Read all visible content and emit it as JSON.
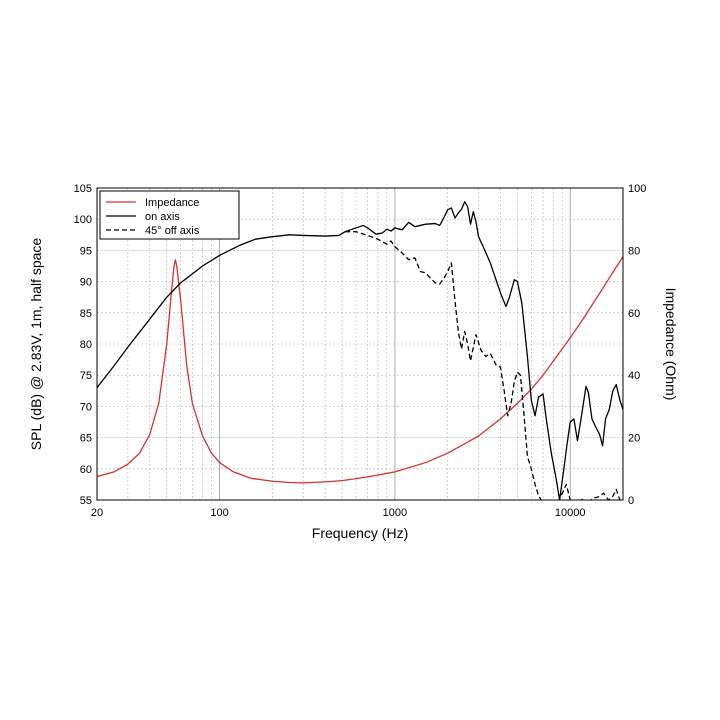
{
  "chart_data": {
    "type": "line",
    "title": "",
    "xlabel": "Frequency (Hz)",
    "ylabel_left": "SPL (dB) @ 2.83V, 1m, half space",
    "ylabel_right": "Impedance (Ohm)",
    "xscale": "log",
    "xlim": [
      20,
      20000
    ],
    "ylim_left": [
      55,
      105
    ],
    "ylim_right": [
      0,
      100
    ],
    "x_tick_labels": [
      "20",
      "100",
      "1000",
      "10000"
    ],
    "x_ticks": [
      20,
      100,
      1000,
      10000
    ],
    "y_left_ticks": [
      55,
      60,
      65,
      70,
      75,
      80,
      85,
      90,
      95,
      100,
      105
    ],
    "y_right_ticks": [
      0,
      20,
      40,
      60,
      80,
      100
    ],
    "grid": true,
    "legend_position": "top-left",
    "series": [
      {
        "name": "Impedance",
        "axis": "right",
        "color": "#d6322b",
        "style": "solid",
        "points": [
          [
            20,
            7.5
          ],
          [
            25,
            9
          ],
          [
            30,
            11.5
          ],
          [
            35,
            15
          ],
          [
            40,
            21
          ],
          [
            45,
            31
          ],
          [
            50,
            50
          ],
          [
            53,
            66
          ],
          [
            55,
            75
          ],
          [
            56,
            77
          ],
          [
            57,
            75
          ],
          [
            60,
            64
          ],
          [
            65,
            43
          ],
          [
            70,
            31
          ],
          [
            80,
            20.5
          ],
          [
            90,
            15
          ],
          [
            100,
            12
          ],
          [
            120,
            9
          ],
          [
            150,
            7
          ],
          [
            200,
            6
          ],
          [
            250,
            5.6
          ],
          [
            300,
            5.5
          ],
          [
            400,
            5.8
          ],
          [
            500,
            6.2
          ],
          [
            700,
            7.4
          ],
          [
            1000,
            9
          ],
          [
            1500,
            12
          ],
          [
            2000,
            15
          ],
          [
            3000,
            20.5
          ],
          [
            4000,
            26
          ],
          [
            5000,
            31
          ],
          [
            6000,
            35.5
          ],
          [
            7000,
            40
          ],
          [
            8000,
            44.5
          ],
          [
            10000,
            52
          ],
          [
            12000,
            58.5
          ],
          [
            15000,
            67
          ],
          [
            18000,
            74
          ],
          [
            20000,
            78
          ]
        ]
      },
      {
        "name": "on axis",
        "axis": "left",
        "color": "#000000",
        "style": "solid",
        "points": [
          [
            20,
            73
          ],
          [
            25,
            76.5
          ],
          [
            30,
            79.5
          ],
          [
            40,
            84
          ],
          [
            50,
            87.5
          ],
          [
            60,
            89.8
          ],
          [
            80,
            92.5
          ],
          [
            100,
            94.2
          ],
          [
            130,
            95.8
          ],
          [
            160,
            96.8
          ],
          [
            200,
            97.2
          ],
          [
            250,
            97.5
          ],
          [
            300,
            97.4
          ],
          [
            400,
            97.3
          ],
          [
            480,
            97.4
          ],
          [
            520,
            98
          ],
          [
            600,
            98.6
          ],
          [
            660,
            99
          ],
          [
            700,
            98.6
          ],
          [
            780,
            97.6
          ],
          [
            850,
            97.8
          ],
          [
            900,
            98.4
          ],
          [
            950,
            98.1
          ],
          [
            1000,
            98.6
          ],
          [
            1100,
            98.3
          ],
          [
            1200,
            99.5
          ],
          [
            1300,
            98.8
          ],
          [
            1500,
            99.2
          ],
          [
            1700,
            99.3
          ],
          [
            1800,
            99
          ],
          [
            1900,
            100.2
          ],
          [
            2000,
            101.5
          ],
          [
            2100,
            101.8
          ],
          [
            2200,
            100.2
          ],
          [
            2300,
            101
          ],
          [
            2400,
            101.6
          ],
          [
            2500,
            102.8
          ],
          [
            2600,
            102
          ],
          [
            2700,
            99.2
          ],
          [
            2800,
            101.2
          ],
          [
            2900,
            99.6
          ],
          [
            3000,
            97.2
          ],
          [
            3200,
            95.5
          ],
          [
            3500,
            93
          ],
          [
            4000,
            88.2
          ],
          [
            4300,
            86
          ],
          [
            4500,
            87.5
          ],
          [
            4800,
            90.3
          ],
          [
            5000,
            90
          ],
          [
            5300,
            86.5
          ],
          [
            5700,
            78
          ],
          [
            6000,
            71
          ],
          [
            6300,
            68.5
          ],
          [
            6600,
            71.5
          ],
          [
            7000,
            72
          ],
          [
            7300,
            68
          ],
          [
            7800,
            62.5
          ],
          [
            8300,
            58.5
          ],
          [
            8700,
            55
          ],
          [
            9200,
            60
          ],
          [
            9600,
            64
          ],
          [
            10000,
            67.5
          ],
          [
            10500,
            68
          ],
          [
            11000,
            64.5
          ],
          [
            11600,
            68.5
          ],
          [
            12300,
            73.2
          ],
          [
            12700,
            72.2
          ],
          [
            13300,
            68
          ],
          [
            14100,
            66.5
          ],
          [
            14700,
            65.5
          ],
          [
            15300,
            63.7
          ],
          [
            15900,
            68
          ],
          [
            16700,
            69.5
          ],
          [
            17500,
            72.5
          ],
          [
            18300,
            73.5
          ],
          [
            19200,
            71
          ],
          [
            20000,
            69.5
          ]
        ]
      },
      {
        "name": "45° off axis",
        "axis": "left",
        "color": "#000000",
        "style": "dashed",
        "points": [
          [
            520,
            98
          ],
          [
            600,
            98
          ],
          [
            700,
            97.4
          ],
          [
            800,
            96.8
          ],
          [
            900,
            96
          ],
          [
            950,
            96.5
          ],
          [
            1000,
            95.6
          ],
          [
            1100,
            94.6
          ],
          [
            1200,
            93.5
          ],
          [
            1300,
            93.8
          ],
          [
            1400,
            91.6
          ],
          [
            1500,
            91.4
          ],
          [
            1600,
            90.5
          ],
          [
            1700,
            89.8
          ],
          [
            1800,
            89.6
          ],
          [
            1900,
            90.5
          ],
          [
            2000,
            91.6
          ],
          [
            2100,
            93
          ],
          [
            2200,
            87
          ],
          [
            2300,
            82
          ],
          [
            2400,
            79.2
          ],
          [
            2500,
            82
          ],
          [
            2600,
            80
          ],
          [
            2700,
            77.3
          ],
          [
            2900,
            81.5
          ],
          [
            3100,
            79
          ],
          [
            3300,
            78
          ],
          [
            3500,
            78.5
          ],
          [
            3800,
            76.5
          ],
          [
            4000,
            76.3
          ],
          [
            4200,
            72.5
          ],
          [
            4400,
            68.5
          ],
          [
            4600,
            70.5
          ],
          [
            4800,
            74
          ],
          [
            5000,
            75.5
          ],
          [
            5200,
            75
          ],
          [
            5400,
            70
          ],
          [
            5700,
            62
          ],
          [
            6000,
            60
          ],
          [
            6300,
            57.5
          ],
          [
            6600,
            55.7
          ],
          [
            7000,
            54.5
          ],
          [
            7500,
            55
          ],
          [
            8500,
            54.5
          ],
          [
            9500,
            57.5
          ],
          [
            10000,
            55
          ],
          [
            10800,
            54.8
          ],
          [
            11500,
            55.2
          ],
          [
            12500,
            54.5
          ],
          [
            13500,
            55.3
          ],
          [
            14500,
            55.5
          ],
          [
            15500,
            56.1
          ],
          [
            16500,
            55
          ],
          [
            17500,
            55.6
          ],
          [
            18300,
            56.7
          ],
          [
            19200,
            55
          ]
        ]
      }
    ]
  }
}
